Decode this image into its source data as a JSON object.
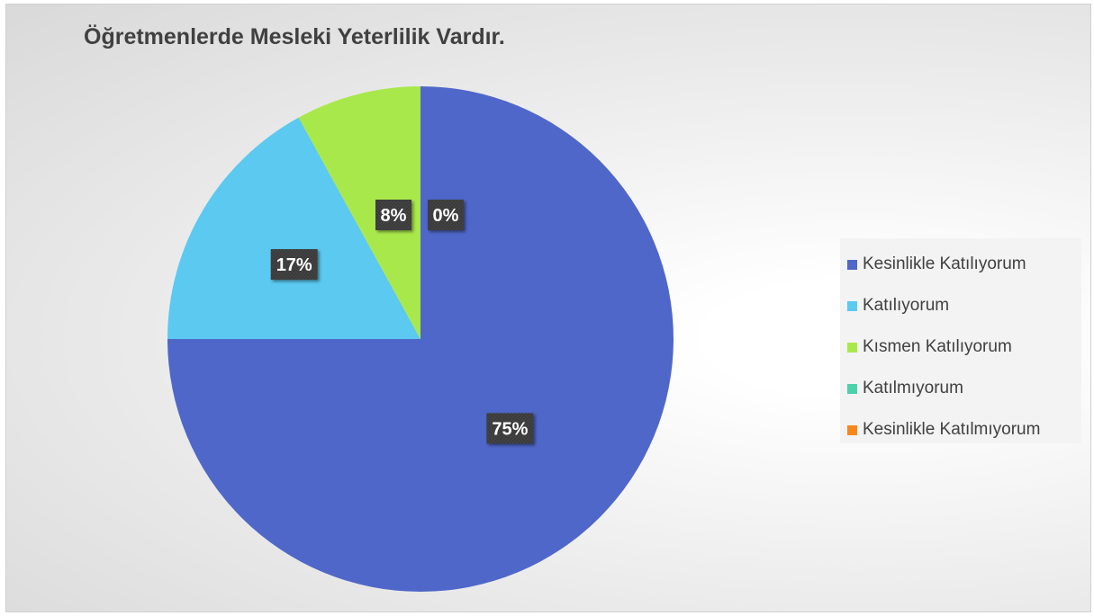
{
  "chart_data": {
    "type": "pie",
    "title": "Öğretmenlerde Mesleki Yeterlilik Vardır.",
    "slices": [
      {
        "name": "Kesinlikle Katılıyorum",
        "value": 75,
        "label": "75%",
        "color": "#4f67c8"
      },
      {
        "name": "Katılıyorum",
        "value": 17,
        "label": "17%",
        "color": "#5bc9f0"
      },
      {
        "name": "Kısmen Katılıyorum",
        "value": 8,
        "label": "8%",
        "color": "#a9e84b"
      },
      {
        "name": "Katılmıyorum",
        "value": 0,
        "label": "0%",
        "color": "#4fd0ad"
      },
      {
        "name": "Kesinlikle Katılmıyorum",
        "value": 0,
        "label": "0%",
        "color": "#f6871e"
      }
    ],
    "legend_position": "right"
  }
}
